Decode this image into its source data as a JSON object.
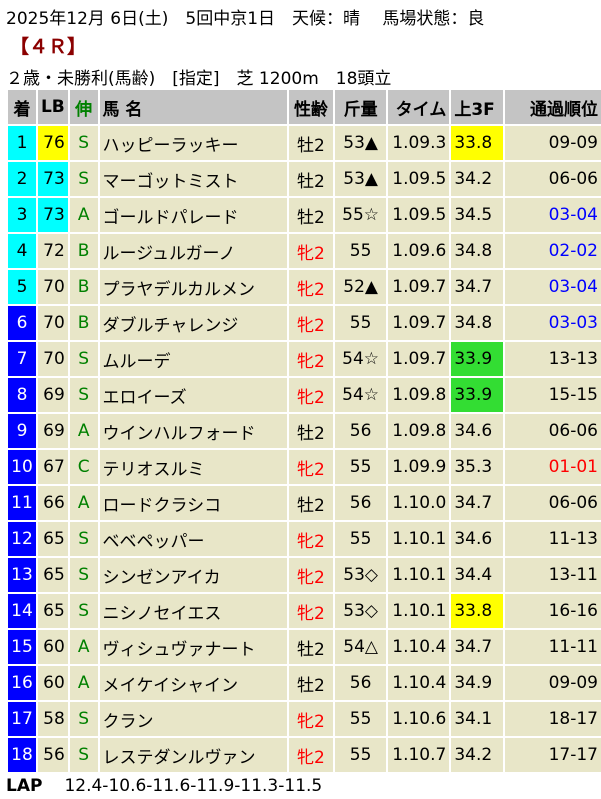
{
  "header": {
    "line1": "2025年12月 6日(土)　5回中京1日　天候：晴　 馬場状態：良",
    "race": "【４Ｒ】",
    "line3": "２歳・未勝利(馬齢)　[指定]　芝 1200m　18頭立"
  },
  "columns": [
    "着",
    "LB",
    "伸",
    "馬 名",
    "性齢",
    "斤量",
    "タイム",
    "上3F",
    "通過順位"
  ],
  "colors": {
    "top_rank": "#00ffff",
    "rank": "#0000ff",
    "highlight_yellow": "#ffff00",
    "highlight_green": "#33dd33",
    "female": "#ff0000",
    "table_bg": "#e8e6c8",
    "header_bg": "#c4c4c4"
  },
  "rows": [
    {
      "rank": "1",
      "lb": "76",
      "nobi": "S",
      "name": "ハッピーラッキー",
      "sex": "牡2",
      "weight": "53▲",
      "time": "1.09.3",
      "f3": "33.8",
      "pass": "09-09",
      "rc": "cy",
      "lbc": "ye",
      "f3c": "ye",
      "pc": ""
    },
    {
      "rank": "2",
      "lb": "73",
      "nobi": "S",
      "name": "マーゴットミスト",
      "sex": "牡2",
      "weight": "53▲",
      "time": "1.09.5",
      "f3": "34.2",
      "pass": "06-06",
      "rc": "cy",
      "lbc": "cy",
      "f3c": "",
      "pc": ""
    },
    {
      "rank": "3",
      "lb": "73",
      "nobi": "A",
      "name": "ゴールドパレード",
      "sex": "牡2",
      "weight": "55☆",
      "time": "1.09.5",
      "f3": "34.5",
      "pass": "03-04",
      "rc": "cy",
      "lbc": "cy",
      "f3c": "",
      "pc": "blue"
    },
    {
      "rank": "4",
      "lb": "72",
      "nobi": "B",
      "name": "ルージュルガーノ",
      "sex": "牝2",
      "weight": "55",
      "time": "1.09.6",
      "f3": "34.8",
      "pass": "02-02",
      "rc": "cy",
      "lbc": "",
      "f3c": "",
      "pc": "blue"
    },
    {
      "rank": "5",
      "lb": "70",
      "nobi": "B",
      "name": "プラヤデルカルメン",
      "sex": "牝2",
      "weight": "52▲",
      "time": "1.09.7",
      "f3": "34.7",
      "pass": "03-04",
      "rc": "cy",
      "lbc": "",
      "f3c": "",
      "pc": "blue"
    },
    {
      "rank": "6",
      "lb": "70",
      "nobi": "B",
      "name": "ダブルチャレンジ",
      "sex": "牝2",
      "weight": "55",
      "time": "1.09.7",
      "f3": "34.8",
      "pass": "03-03",
      "rc": "bl",
      "lbc": "",
      "f3c": "",
      "pc": "blue"
    },
    {
      "rank": "7",
      "lb": "70",
      "nobi": "S",
      "name": "ムルーデ",
      "sex": "牝2",
      "weight": "54☆",
      "time": "1.09.7",
      "f3": "33.9",
      "pass": "13-13",
      "rc": "bl",
      "lbc": "",
      "f3c": "gr",
      "pc": ""
    },
    {
      "rank": "8",
      "lb": "69",
      "nobi": "S",
      "name": "エロイーズ",
      "sex": "牝2",
      "weight": "54☆",
      "time": "1.09.8",
      "f3": "33.9",
      "pass": "15-15",
      "rc": "bl",
      "lbc": "",
      "f3c": "gr",
      "pc": ""
    },
    {
      "rank": "9",
      "lb": "69",
      "nobi": "A",
      "name": "ウインハルフォード",
      "sex": "牡2",
      "weight": "56",
      "time": "1.09.8",
      "f3": "34.6",
      "pass": "06-06",
      "rc": "bl",
      "lbc": "",
      "f3c": "",
      "pc": ""
    },
    {
      "rank": "10",
      "lb": "67",
      "nobi": "C",
      "name": "テリオスルミ",
      "sex": "牝2",
      "weight": "55",
      "time": "1.09.9",
      "f3": "35.3",
      "pass": "01-01",
      "rc": "bl",
      "lbc": "",
      "f3c": "",
      "pc": "red"
    },
    {
      "rank": "11",
      "lb": "66",
      "nobi": "A",
      "name": "ロードクラシコ",
      "sex": "牡2",
      "weight": "56",
      "time": "1.10.0",
      "f3": "34.7",
      "pass": "06-06",
      "rc": "bl",
      "lbc": "",
      "f3c": "",
      "pc": ""
    },
    {
      "rank": "12",
      "lb": "65",
      "nobi": "S",
      "name": "ベベペッパー",
      "sex": "牝2",
      "weight": "55",
      "time": "1.10.1",
      "f3": "34.6",
      "pass": "11-13",
      "rc": "bl",
      "lbc": "",
      "f3c": "",
      "pc": ""
    },
    {
      "rank": "13",
      "lb": "65",
      "nobi": "S",
      "name": "シンゼンアイカ",
      "sex": "牝2",
      "weight": "53◇",
      "time": "1.10.1",
      "f3": "34.4",
      "pass": "13-11",
      "rc": "bl",
      "lbc": "",
      "f3c": "",
      "pc": ""
    },
    {
      "rank": "14",
      "lb": "65",
      "nobi": "S",
      "name": "ニシノセイエス",
      "sex": "牝2",
      "weight": "53◇",
      "time": "1.10.1",
      "f3": "33.8",
      "pass": "16-16",
      "rc": "bl",
      "lbc": "",
      "f3c": "ye",
      "pc": ""
    },
    {
      "rank": "15",
      "lb": "60",
      "nobi": "A",
      "name": "ヴィシュヴァナート",
      "sex": "牡2",
      "weight": "54△",
      "time": "1.10.4",
      "f3": "34.7",
      "pass": "11-11",
      "rc": "bl",
      "lbc": "",
      "f3c": "",
      "pc": ""
    },
    {
      "rank": "16",
      "lb": "60",
      "nobi": "A",
      "name": "メイケイシャイン",
      "sex": "牡2",
      "weight": "56",
      "time": "1.10.4",
      "f3": "34.9",
      "pass": "09-09",
      "rc": "bl",
      "lbc": "",
      "f3c": "",
      "pc": ""
    },
    {
      "rank": "17",
      "lb": "58",
      "nobi": "S",
      "name": "クラン",
      "sex": "牝2",
      "weight": "55",
      "time": "1.10.6",
      "f3": "34.1",
      "pass": "18-17",
      "rc": "bl",
      "lbc": "",
      "f3c": "",
      "pc": ""
    },
    {
      "rank": "18",
      "lb": "56",
      "nobi": "S",
      "name": "レステダンルヴァン",
      "sex": "牝2",
      "weight": "55",
      "time": "1.10.7",
      "f3": "34.2",
      "pass": "17-17",
      "rc": "bl",
      "lbc": "",
      "f3c": "",
      "pc": ""
    }
  ],
  "lap": {
    "label": "LAP",
    "value": "12.4-10.6-11.6-11.9-11.3-11.5"
  }
}
